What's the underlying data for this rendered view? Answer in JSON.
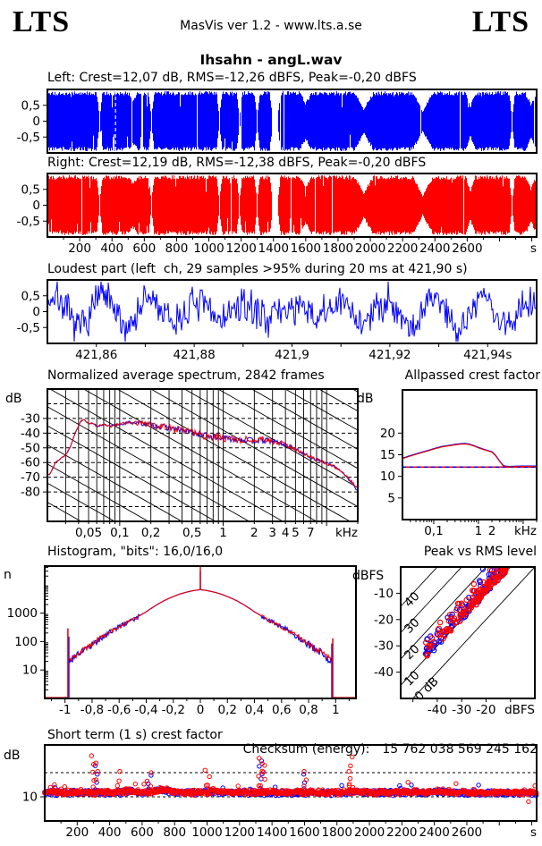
{
  "header": {
    "logo_left": "LTS",
    "center": "MasVis ver 1.2 - www.lts.a.se",
    "logo_right": "LTS"
  },
  "title": "Ihsahn - angL.wav",
  "waveforms": {
    "left_label": "Left: Crest=12,07 dB, RMS=-12,26 dBFS, Peak=-0,20 dBFS",
    "right_label": "Right: Crest=12,19 dB, RMS=-12,38 dBFS, Peak=-0,20 dBFS"
  },
  "loudest": {
    "title": "Loudest part (left  ch, 29 samples >95% during 20 ms at 421,90 s)"
  },
  "spectrum_sec": {
    "title": "Normalized average spectrum, 2842 frames",
    "ylabel": "dB"
  },
  "allpass_sec": {
    "title": "Allpassed crest factor",
    "ylabel": "dB"
  },
  "hist_sec": {
    "title": "Histogram, \"bits\": 16,0/16,0",
    "ylabel": "n"
  },
  "peak_sec": {
    "title": "Peak vs RMS level",
    "ylabel": "dBFS"
  },
  "short_sec": {
    "title": "Short term (1 s) crest factor",
    "ylabel": "dB",
    "checksum_label": "Checksum (energy):",
    "checksum_value": "15 762 038 569 245 162"
  },
  "chart_data": [
    {
      "id": "waveL",
      "type": "waveform",
      "channel": "left",
      "color": "#0000ff",
      "seed": 11,
      "duration_s": 3030,
      "ylim": [
        -1,
        1
      ],
      "yticks": [
        [
          0.5,
          "0,5"
        ],
        [
          0,
          "0"
        ],
        [
          -0.5,
          "-0,5"
        ]
      ],
      "gaps": [
        [
          320,
          328
        ],
        [
          641,
          648
        ],
        [
          1062,
          1068
        ],
        [
          1186,
          1192
        ],
        [
          1296,
          1302
        ],
        [
          1392,
          1430
        ],
        [
          2874,
          2882
        ]
      ],
      "dips": [
        [
          500,
          560,
          0.75
        ],
        [
          1560,
          1640,
          0.6
        ],
        [
          1900,
          2020,
          0.38
        ],
        [
          2260,
          2390,
          0.3
        ],
        [
          2590,
          2650,
          0.45
        ],
        [
          2960,
          3030,
          0.55
        ]
      ],
      "marker_s": 421.9
    },
    {
      "id": "waveR",
      "type": "waveform",
      "channel": "right",
      "color": "#ff0000",
      "seed": 22,
      "duration_s": 3030,
      "ylim": [
        -1,
        1
      ],
      "yticks": [
        [
          0.5,
          "0,5"
        ],
        [
          0,
          "0"
        ],
        [
          -0.5,
          "-0,5"
        ]
      ],
      "gaps": [
        [
          320,
          328
        ],
        [
          641,
          648
        ],
        [
          1062,
          1068
        ],
        [
          1186,
          1192
        ],
        [
          1296,
          1302
        ],
        [
          1392,
          1430
        ],
        [
          2874,
          2882
        ]
      ],
      "dips": [
        [
          500,
          560,
          0.75
        ],
        [
          1560,
          1640,
          0.6
        ],
        [
          1900,
          2020,
          0.38
        ],
        [
          2260,
          2390,
          0.3
        ],
        [
          2590,
          2650,
          0.45
        ],
        [
          2960,
          3030,
          0.55
        ]
      ],
      "xticks": [
        [
          200,
          "200"
        ],
        [
          400,
          "400"
        ],
        [
          600,
          "600"
        ],
        [
          800,
          "800"
        ],
        [
          1000,
          "1000"
        ],
        [
          1200,
          "1200"
        ],
        [
          1400,
          "1400"
        ],
        [
          1600,
          "1600"
        ],
        [
          1800,
          "1800"
        ],
        [
          2000,
          "2000"
        ],
        [
          2200,
          "2200"
        ],
        [
          2400,
          "2400"
        ],
        [
          2600,
          "2600"
        ]
      ],
      "xunit": "s"
    },
    {
      "id": "loudest",
      "type": "noisewave",
      "color": "#0000ff",
      "seed": 7,
      "xlim": [
        421.85,
        421.95
      ],
      "cycles": 10.3,
      "ylim": [
        -1,
        1
      ],
      "yticks": [
        [
          0.5,
          "0,5"
        ],
        [
          0,
          "0"
        ],
        [
          -0.5,
          "-0,5"
        ]
      ],
      "xticks": [
        [
          421.86,
          "421,86"
        ],
        [
          421.88,
          "421,88"
        ],
        [
          421.9,
          "421,9"
        ],
        [
          421.92,
          "421,92"
        ],
        [
          421.94,
          "421,94s"
        ]
      ]
    },
    {
      "id": "spectrum",
      "type": "spectrum",
      "colors": [
        "#0000ff",
        "#ee0000"
      ],
      "seed": 13,
      "xlim_khz": [
        0.02,
        20
      ],
      "ylim_db": [
        -100,
        -10
      ],
      "yticks": [
        [
          -30,
          "-30"
        ],
        [
          -40,
          "-40"
        ],
        [
          -50,
          "-50"
        ],
        [
          -60,
          "-60"
        ],
        [
          -70,
          "-70"
        ],
        [
          -80,
          "-80"
        ]
      ],
      "hgrid_db": [
        -20,
        -30,
        -40,
        -50,
        -60,
        -70,
        -80,
        -90
      ],
      "diag_slope_db_per_decade": -40,
      "diag_spacing_db": 13,
      "xticks": [
        [
          0.05,
          "0,05"
        ],
        [
          0.1,
          "0,1"
        ],
        [
          0.2,
          "0,2"
        ],
        [
          0.5,
          "0,5"
        ],
        [
          1,
          "1"
        ],
        [
          2,
          "2"
        ],
        [
          3,
          "3"
        ],
        [
          4,
          "4"
        ],
        [
          5,
          "5"
        ],
        [
          7,
          "7"
        ]
      ],
      "xunit": "kHz",
      "points": [
        [
          0.021,
          -68
        ],
        [
          0.024,
          -60
        ],
        [
          0.027,
          -57
        ],
        [
          0.03,
          -55
        ],
        [
          0.033,
          -50
        ],
        [
          0.037,
          -40
        ],
        [
          0.042,
          -32
        ],
        [
          0.045,
          -30.5
        ],
        [
          0.05,
          -33.5
        ],
        [
          0.055,
          -33
        ],
        [
          0.06,
          -35.5
        ],
        [
          0.07,
          -34
        ],
        [
          0.08,
          -35.5
        ],
        [
          0.09,
          -34.5
        ],
        [
          0.1,
          -34
        ],
        [
          0.11,
          -33.5
        ],
        [
          0.13,
          -32.5
        ],
        [
          0.15,
          -33
        ],
        [
          0.18,
          -34
        ],
        [
          0.2,
          -34.5
        ],
        [
          0.25,
          -35.5
        ],
        [
          0.3,
          -36.5
        ],
        [
          0.35,
          -37.5
        ],
        [
          0.4,
          -38
        ],
        [
          0.5,
          -39.5
        ],
        [
          0.6,
          -41
        ],
        [
          0.8,
          -42.5
        ],
        [
          1,
          -43.5
        ],
        [
          1.3,
          -44
        ],
        [
          1.6,
          -44.5
        ],
        [
          2,
          -45
        ],
        [
          2.5,
          -45
        ],
        [
          3,
          -45.5
        ],
        [
          3.5,
          -46.5
        ],
        [
          4,
          -48
        ],
        [
          5,
          -51
        ],
        [
          6,
          -54
        ],
        [
          7,
          -56.5
        ],
        [
          8,
          -58
        ],
        [
          9,
          -59.5
        ],
        [
          10,
          -60.5
        ],
        [
          12,
          -63
        ],
        [
          14,
          -66
        ],
        [
          16,
          -70
        ],
        [
          18,
          -74
        ],
        [
          20,
          -78
        ]
      ],
      "jitter": [
        [
          0.02,
          0.4
        ],
        [
          0.05,
          0.5
        ],
        [
          0.1,
          1
        ],
        [
          0.15,
          1.8
        ],
        [
          0.3,
          2.6
        ],
        [
          1,
          2.8
        ],
        [
          3,
          2.3
        ],
        [
          6,
          1.4
        ],
        [
          12,
          1
        ],
        [
          20,
          0.8
        ]
      ]
    },
    {
      "id": "allpass",
      "type": "xyline",
      "colors": [
        "#0000ff",
        "#ee0000"
      ],
      "xlim_khz": [
        0.02,
        20
      ],
      "ylim": [
        0,
        30
      ],
      "yticks": [
        [
          20,
          "20"
        ],
        [
          15,
          "15"
        ],
        [
          10,
          "10"
        ],
        [
          5,
          "5"
        ]
      ],
      "xticks": [
        [
          0.1,
          "0,1"
        ],
        [
          1,
          "1"
        ],
        [
          2,
          "2"
        ]
      ],
      "xunit": "kHz",
      "dashed_y": 12.15,
      "points": [
        [
          0.02,
          14.1
        ],
        [
          0.03,
          14.7
        ],
        [
          0.05,
          15.4
        ],
        [
          0.08,
          16.0
        ],
        [
          0.1,
          16.3
        ],
        [
          0.15,
          16.8
        ],
        [
          0.2,
          17.0
        ],
        [
          0.3,
          17.3
        ],
        [
          0.4,
          17.45
        ],
        [
          0.5,
          17.5
        ],
        [
          0.6,
          17.4
        ],
        [
          0.8,
          17.0
        ],
        [
          1,
          16.6
        ],
        [
          1.3,
          16.2
        ],
        [
          1.6,
          15.9
        ],
        [
          2,
          15.6
        ],
        [
          2.4,
          14.8
        ],
        [
          3,
          13.4
        ],
        [
          3.5,
          12.5
        ],
        [
          4,
          12.25
        ],
        [
          5,
          12.2
        ],
        [
          7,
          12.25
        ],
        [
          10,
          12.3
        ],
        [
          20,
          12.3
        ]
      ]
    },
    {
      "id": "hist",
      "type": "histogram",
      "colors": [
        "#0000ff",
        "#ee0000"
      ],
      "seed": 17,
      "xlim": [
        -1.15,
        1.15
      ],
      "ylim_log": [
        1,
        45000
      ],
      "yticks": [
        [
          1000,
          "1000"
        ],
        [
          100,
          "100"
        ],
        [
          10,
          "10"
        ]
      ],
      "xticks": [
        [
          -1,
          "-1"
        ],
        [
          -0.8,
          "-0,8"
        ],
        [
          -0.6,
          "-0,6"
        ],
        [
          -0.4,
          "-0,4"
        ],
        [
          -0.2,
          "-0,2"
        ],
        [
          0,
          "0"
        ],
        [
          0.2,
          "0,2"
        ],
        [
          0.4,
          "0,4"
        ],
        [
          0.6,
          "0,6"
        ],
        [
          0.8,
          "0,8"
        ],
        [
          1,
          "1"
        ]
      ],
      "spike_x": 0.972,
      "spikes": {
        "left_red": 290,
        "left_blue": 150,
        "right_red": 130,
        "right_blue": 85,
        "center": 45000
      },
      "dome": [
        [
          0,
          6700
        ],
        [
          0.05,
          6200
        ],
        [
          0.1,
          5500
        ],
        [
          0.15,
          4700
        ],
        [
          0.2,
          3800
        ],
        [
          0.25,
          3000
        ],
        [
          0.3,
          2250
        ],
        [
          0.35,
          1600
        ],
        [
          0.4,
          1100
        ],
        [
          0.45,
          800
        ],
        [
          0.5,
          580
        ],
        [
          0.55,
          440
        ],
        [
          0.6,
          330
        ],
        [
          0.65,
          240
        ],
        [
          0.7,
          170
        ],
        [
          0.75,
          120
        ],
        [
          0.8,
          82
        ],
        [
          0.85,
          56
        ],
        [
          0.9,
          38
        ],
        [
          0.94,
          28
        ],
        [
          0.97,
          22
        ]
      ]
    },
    {
      "id": "peak",
      "type": "scatter",
      "colors": [
        "#0000ff",
        "#ff0000"
      ],
      "seed": 5,
      "xlim": [
        -55,
        0
      ],
      "ylim": [
        -50,
        0
      ],
      "xticks": [
        [
          -40,
          "-40"
        ],
        [
          -30,
          "-30"
        ],
        [
          -20,
          "-20"
        ]
      ],
      "xunit": "dBFS",
      "yticks": [
        [
          -10,
          "-10"
        ],
        [
          -20,
          "-20"
        ],
        [
          -30,
          "-30"
        ],
        [
          -40,
          "-40"
        ]
      ],
      "diagonals": [
        [
          0,
          "0 dB"
        ],
        [
          10,
          "10"
        ],
        [
          20,
          "20"
        ],
        [
          30,
          "30"
        ],
        [
          40,
          "40"
        ]
      ],
      "n_red": 140,
      "n_blue": 125,
      "rms_range": [
        -45,
        -12
      ],
      "crest_range": [
        9.5,
        19
      ]
    },
    {
      "id": "short",
      "type": "timescatter",
      "colors": [
        "#0000ff",
        "#ff0000"
      ],
      "seed": 3,
      "duration_s": 3030,
      "ylim": [
        0,
        31.5
      ],
      "yticks": [
        [
          10,
          "10"
        ]
      ],
      "dashed_y": [
        10,
        20
      ],
      "base_level_db": 10.5,
      "spikes": [
        [
          70,
          15
        ],
        [
          300,
          27
        ],
        [
          310,
          24
        ],
        [
          470,
          20.5
        ],
        [
          640,
          20
        ],
        [
          1000,
          21
        ],
        [
          1330,
          26
        ],
        [
          1340,
          23
        ],
        [
          1600,
          20.5
        ],
        [
          1880,
          26.5
        ],
        [
          2250,
          16
        ],
        [
          2980,
          8
        ]
      ],
      "bumps": [
        [
          520,
          30,
          0.8
        ],
        [
          720,
          60,
          1.2
        ],
        [
          1050,
          40,
          0.6
        ],
        [
          1900,
          50,
          0.5
        ],
        [
          2450,
          60,
          0.5
        ]
      ],
      "xticks": [
        [
          200,
          "200"
        ],
        [
          400,
          "400"
        ],
        [
          600,
          "600"
        ],
        [
          800,
          "800"
        ],
        [
          1000,
          "1000"
        ],
        [
          1200,
          "1200"
        ],
        [
          1400,
          "1400"
        ],
        [
          1600,
          "1600"
        ],
        [
          1800,
          "1800"
        ],
        [
          2000,
          "2000"
        ],
        [
          2200,
          "2200"
        ],
        [
          2400,
          "2400"
        ],
        [
          2600,
          "2600"
        ]
      ],
      "xunit": "s"
    }
  ]
}
